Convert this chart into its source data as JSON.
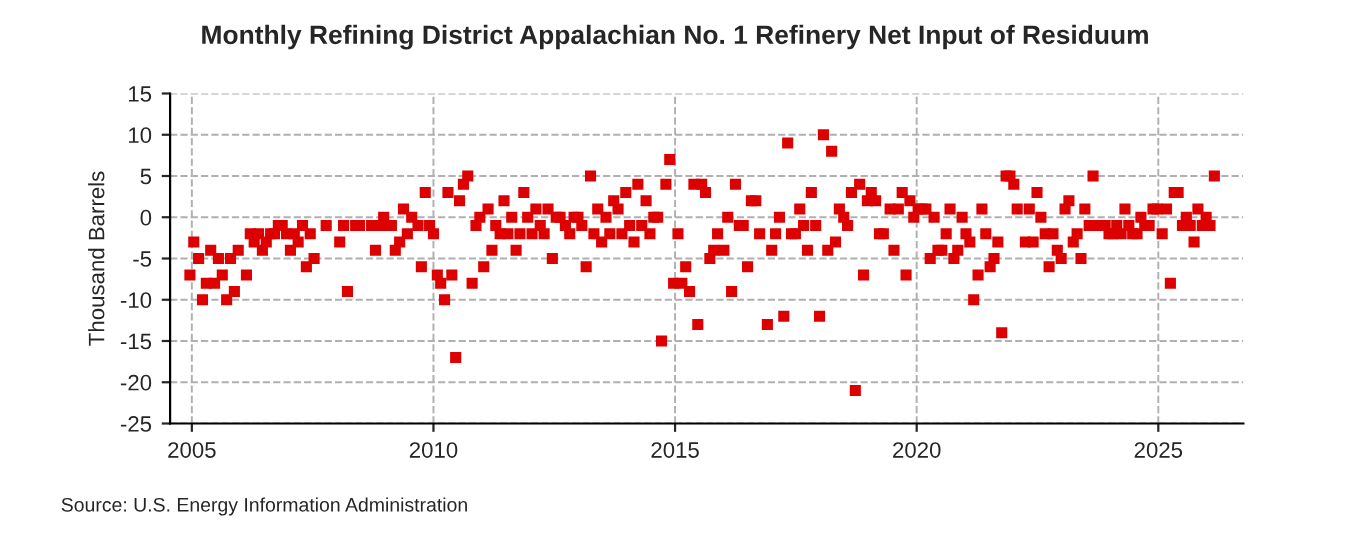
{
  "chart_data": {
    "type": "scatter",
    "title": "Monthly Refining District Appalachian No. 1 Refinery Net Input of Residuum",
    "ylabel": "Thousand Barrels",
    "annotations": [
      "Source: U.S. Energy Information Administration"
    ],
    "x": [
      2004.96,
      2005.04,
      2005.14,
      2005.22,
      2005.3,
      2005.39,
      2005.47,
      2005.55,
      2005.63,
      2005.72,
      2005.8,
      2005.88,
      2005.96,
      2006.13,
      2006.21,
      2006.29,
      2006.38,
      2006.46,
      2006.54,
      2006.63,
      2006.71,
      2006.79,
      2006.87,
      2006.96,
      2007.04,
      2007.12,
      2007.2,
      2007.29,
      2007.37,
      2007.45,
      2007.53,
      2007.78,
      2008.06,
      2008.14,
      2008.22,
      2008.39,
      2008.47,
      2008.72,
      2008.8,
      2008.88,
      2008.97,
      2009.05,
      2009.13,
      2009.21,
      2009.3,
      2009.38,
      2009.46,
      2009.55,
      2009.68,
      2009.75,
      2009.83,
      2009.92,
      2010.0,
      2010.08,
      2010.15,
      2010.23,
      2010.3,
      2010.38,
      2010.46,
      2010.54,
      2010.62,
      2010.71,
      2010.8,
      2010.88,
      2010.96,
      2011.04,
      2011.13,
      2011.21,
      2011.29,
      2011.38,
      2011.46,
      2011.54,
      2011.62,
      2011.71,
      2011.79,
      2011.87,
      2011.95,
      2012.04,
      2012.12,
      2012.21,
      2012.29,
      2012.37,
      2012.46,
      2012.54,
      2012.62,
      2012.73,
      2012.82,
      2012.91,
      2012.99,
      2013.07,
      2013.16,
      2013.25,
      2013.32,
      2013.4,
      2013.48,
      2013.57,
      2013.65,
      2013.73,
      2013.82,
      2013.9,
      2013.98,
      2014.06,
      2014.15,
      2014.23,
      2014.31,
      2014.4,
      2014.48,
      2014.56,
      2014.64,
      2014.72,
      2014.81,
      2014.89,
      2014.97,
      2015.06,
      2015.14,
      2015.22,
      2015.3,
      2015.39,
      2015.47,
      2015.55,
      2015.63,
      2015.72,
      2015.8,
      2015.88,
      2016.01,
      2016.09,
      2016.17,
      2016.25,
      2016.33,
      2016.41,
      2016.5,
      2016.58,
      2016.67,
      2016.75,
      2016.91,
      2017.0,
      2017.08,
      2017.16,
      2017.25,
      2017.33,
      2017.41,
      2017.49,
      2017.58,
      2017.66,
      2017.74,
      2017.82,
      2017.91,
      2017.99,
      2018.07,
      2018.16,
      2018.24,
      2018.32,
      2018.4,
      2018.49,
      2018.57,
      2018.65,
      2018.73,
      2018.82,
      2018.9,
      2018.98,
      2019.06,
      2019.15,
      2019.23,
      2019.31,
      2019.45,
      2019.53,
      2019.62,
      2019.7,
      2019.78,
      2019.86,
      2019.94,
      2020.03,
      2020.11,
      2020.19,
      2020.28,
      2020.36,
      2020.44,
      2020.52,
      2020.61,
      2020.69,
      2020.77,
      2020.85,
      2020.94,
      2021.02,
      2021.1,
      2021.18,
      2021.27,
      2021.35,
      2021.43,
      2021.52,
      2021.6,
      2021.68,
      2021.76,
      2021.85,
      2021.93,
      2022.01,
      2022.08,
      2022.25,
      2022.33,
      2022.41,
      2022.49,
      2022.57,
      2022.66,
      2022.74,
      2022.82,
      2022.91,
      2022.99,
      2023.07,
      2023.15,
      2023.24,
      2023.32,
      2023.4,
      2023.48,
      2023.57,
      2023.65,
      2023.73,
      2023.9,
      2023.98,
      2024.06,
      2024.14,
      2024.23,
      2024.31,
      2024.39,
      2024.47,
      2024.56,
      2024.64,
      2024.72,
      2024.81,
      2024.89,
      2024.97,
      2025.08,
      2025.17,
      2025.25,
      2025.33,
      2025.41,
      2025.5,
      2025.58,
      2025.66,
      2025.74,
      2025.82,
      2025.91,
      2025.99,
      2026.07,
      2026.16
    ],
    "series": [
      {
        "color": "#dd0000",
        "values": [
          -7,
          -3,
          -5,
          -10,
          -8,
          -4,
          -8,
          -5,
          -7,
          -10,
          -5,
          -9,
          -4,
          -7,
          -2,
          -3,
          -2,
          -4,
          -3,
          -2,
          -2,
          -1,
          -1,
          -2,
          -4,
          -2,
          -3,
          -1,
          -6,
          -2,
          -5,
          -1,
          -3,
          -1,
          -9,
          -1,
          -1,
          -1,
          -4,
          -1,
          0,
          -1,
          -1,
          -4,
          -3,
          1,
          -2,
          0,
          -1,
          -6,
          3,
          -1,
          -2,
          -7,
          -8,
          -10,
          3,
          -7,
          -17,
          2,
          4,
          5,
          -8,
          -1,
          0,
          -6,
          1,
          -4,
          -1,
          -2,
          2,
          -2,
          0,
          -4,
          -2,
          3,
          0,
          -2,
          1,
          -1,
          -2,
          1,
          -5,
          0,
          0,
          -1,
          -2,
          0,
          0,
          -1,
          -6,
          5,
          -2,
          1,
          -3,
          0,
          -2,
          2,
          1,
          -2,
          3,
          -1,
          -3,
          4,
          -1,
          2,
          -2,
          0,
          0,
          -15,
          4,
          7,
          -8,
          -2,
          -8,
          -6,
          -9,
          4,
          -13,
          4,
          3,
          -5,
          -4,
          -2,
          -4,
          0,
          -9,
          4,
          -1,
          -1,
          -6,
          2,
          2,
          -2,
          -13,
          -4,
          -2,
          0,
          -12,
          9,
          -2,
          -2,
          1,
          -1,
          -4,
          3,
          -1,
          -12,
          10,
          -4,
          8,
          -3,
          1,
          0,
          -1,
          3,
          -21,
          4,
          -7,
          2,
          3,
          2,
          -2,
          -2,
          1,
          -4,
          1,
          3,
          -7,
          2,
          0,
          1,
          1,
          1,
          -5,
          0,
          -4,
          -4,
          -2,
          1,
          -5,
          -4,
          0,
          -2,
          -3,
          -10,
          -7,
          1,
          -2,
          -6,
          -5,
          -3,
          -14,
          5,
          5,
          4,
          1,
          -3,
          1,
          -3,
          3,
          0,
          -2,
          -6,
          -2,
          -4,
          -5,
          1,
          2,
          -3,
          -2,
          -5,
          1,
          -1,
          5,
          -1,
          -1,
          -2,
          -2,
          -1,
          -2,
          1,
          -1,
          -2,
          -2,
          0,
          -1,
          -1,
          1,
          1,
          -2,
          1,
          -8,
          3,
          3,
          -1,
          0,
          -1,
          -3,
          1,
          -1,
          0,
          -1,
          5
        ]
      }
    ],
    "xlim": [
      2004.55,
      2026.76
    ],
    "ylim": [
      -25,
      15
    ],
    "xticks": [
      2005,
      2010,
      2015,
      2020,
      2025
    ],
    "yticks": [
      -25,
      -20,
      -15,
      -10,
      -5,
      0,
      5,
      10,
      15
    ],
    "grid": true,
    "marker": "square",
    "legend": false
  }
}
